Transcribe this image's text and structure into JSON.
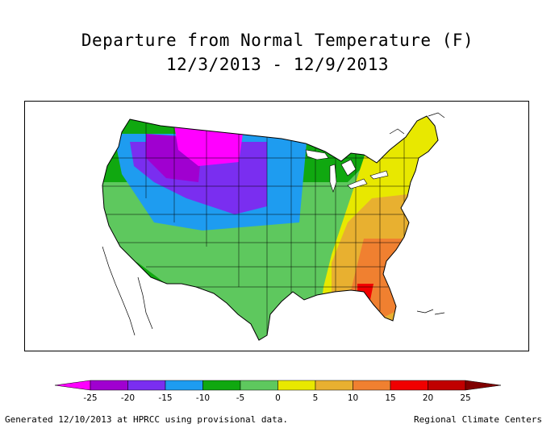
{
  "title": "Departure from Normal Temperature (F)",
  "period": "12/3/2013 - 12/9/2013",
  "legend": {
    "ticks": [
      "-25",
      "-20",
      "-15",
      "-10",
      "-5",
      "0",
      "5",
      "10",
      "15",
      "20",
      "25"
    ],
    "colors": [
      "#ff00ff",
      "#a000d0",
      "#7a2ef0",
      "#1e9cf0",
      "#10a810",
      "#5ec85e",
      "#e8e800",
      "#e8b030",
      "#f08030",
      "#f00000",
      "#c00000",
      "#800000"
    ]
  },
  "footer": {
    "left": "Generated 12/10/2013 at HPRCC using provisional data.",
    "right": "Regional Climate Centers"
  }
}
